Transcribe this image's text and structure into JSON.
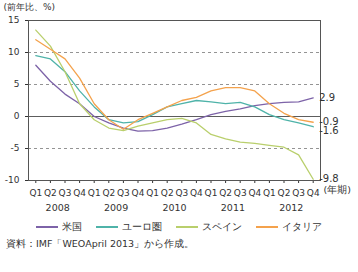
{
  "chart_data": {
    "type": "line",
    "ylabel": "(前年比、%)",
    "xlabel": "(年期)",
    "caption": "資料：IMF「WEOApril 2013」から作成。",
    "categories": [
      "Q1",
      "Q2",
      "Q3",
      "Q4",
      "Q1",
      "Q2",
      "Q3",
      "Q4",
      "Q1",
      "Q2",
      "Q3",
      "Q4",
      "Q1",
      "Q2",
      "Q3",
      "Q4",
      "Q1",
      "Q2",
      "Q3",
      "Q4"
    ],
    "year_labels": [
      "2008",
      "2009",
      "2010",
      "2011",
      "2012"
    ],
    "series": [
      {
        "name": "米国",
        "color": "#7d63a8",
        "values": [
          8,
          5.5,
          3.5,
          2,
          0,
          -1,
          -1.8,
          -2.3,
          -2.2,
          -1.8,
          -1.2,
          -0.5,
          0.3,
          0.8,
          1.2,
          1.7,
          2,
          2.2,
          2.3,
          2.9
        ]
      },
      {
        "name": "ユーロ圏",
        "color": "#4fb3a9",
        "values": [
          9.5,
          9,
          7,
          4,
          1.5,
          -0.5,
          -1,
          -0.8,
          0.3,
          1.5,
          2,
          2.5,
          2.3,
          2,
          2.2,
          1.5,
          0.3,
          -0.5,
          -1,
          -1.6
        ]
      },
      {
        "name": "スペイン",
        "color": "#b9cf6c",
        "values": [
          13.5,
          11,
          7,
          2,
          -0.5,
          -1.8,
          -2.2,
          -1.5,
          -1,
          -0.5,
          -0.3,
          -1,
          -2.8,
          -3.5,
          -4,
          -4.2,
          -4.5,
          -4.8,
          -6,
          -9.8
        ]
      },
      {
        "name": "イタリア",
        "color": "#f4a24c",
        "values": [
          12,
          10.5,
          9,
          6,
          2,
          -0.5,
          -2,
          -0.5,
          0.5,
          1.5,
          2.5,
          3,
          4,
          4.5,
          4.5,
          4,
          2,
          0.5,
          -0.5,
          -0.9
        ]
      }
    ],
    "annotations": [
      {
        "series": "米国",
        "text": "2.9"
      },
      {
        "series": "イタリア",
        "text": "-0.9"
      },
      {
        "series": "ユーロ圏",
        "text": "-1.6"
      },
      {
        "series": "スペイン",
        "text": "-9.8"
      }
    ],
    "ylim": [
      -10,
      15
    ],
    "yticks": [
      -10,
      -5,
      0,
      5,
      10,
      15
    ],
    "xlim": [
      -0.5,
      19.5
    ],
    "grid": true,
    "legend": "bottom"
  }
}
